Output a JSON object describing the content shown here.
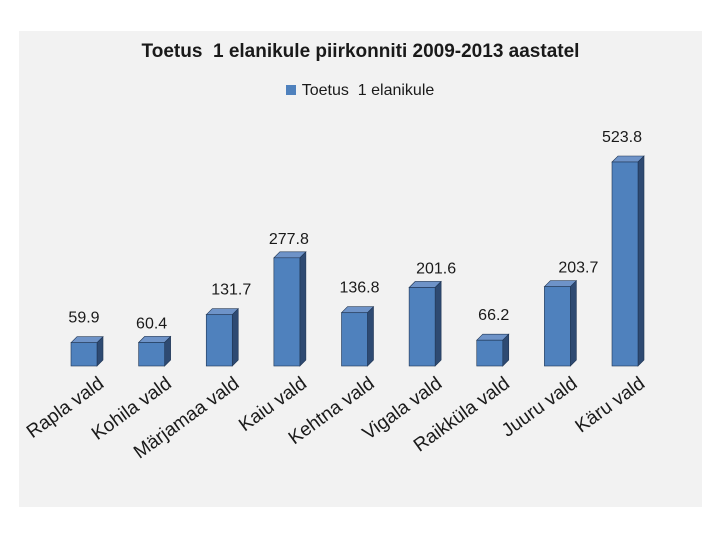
{
  "colors": {
    "bar_front": "#4f81bd",
    "bar_side": "#2e4a72",
    "bar_top": "#6e93c8",
    "bar_outline": "#1f3554"
  },
  "chart_data": {
    "type": "bar",
    "title": "Toetus  1 elanikule piirkonniti 2009-2013 aastatel",
    "legend": "Toetus  1 elanikule",
    "legend_position": "top",
    "categories": [
      "Rapla vald",
      "Kohila vald",
      "Märjamaa vald",
      "Kaiu vald",
      "Kehtna vald",
      "Vigala vald",
      "Raikküla vald",
      "Juuru vald",
      "Käru vald"
    ],
    "series": [
      {
        "name": "Toetus  1 elanikule",
        "values": [
          59.9,
          60.4,
          131.7,
          277.8,
          136.8,
          201.6,
          66.2,
          203.7,
          523.8
        ]
      }
    ],
    "value_labels": [
      "59.9",
      "60.4",
      "131.7",
      "277.8",
      "136.8",
      "201.6",
      "66.2",
      "203.7",
      "523.8"
    ],
    "xlabel": "",
    "ylabel": "",
    "ylim": [
      0,
      523.8
    ],
    "grid": false
  }
}
